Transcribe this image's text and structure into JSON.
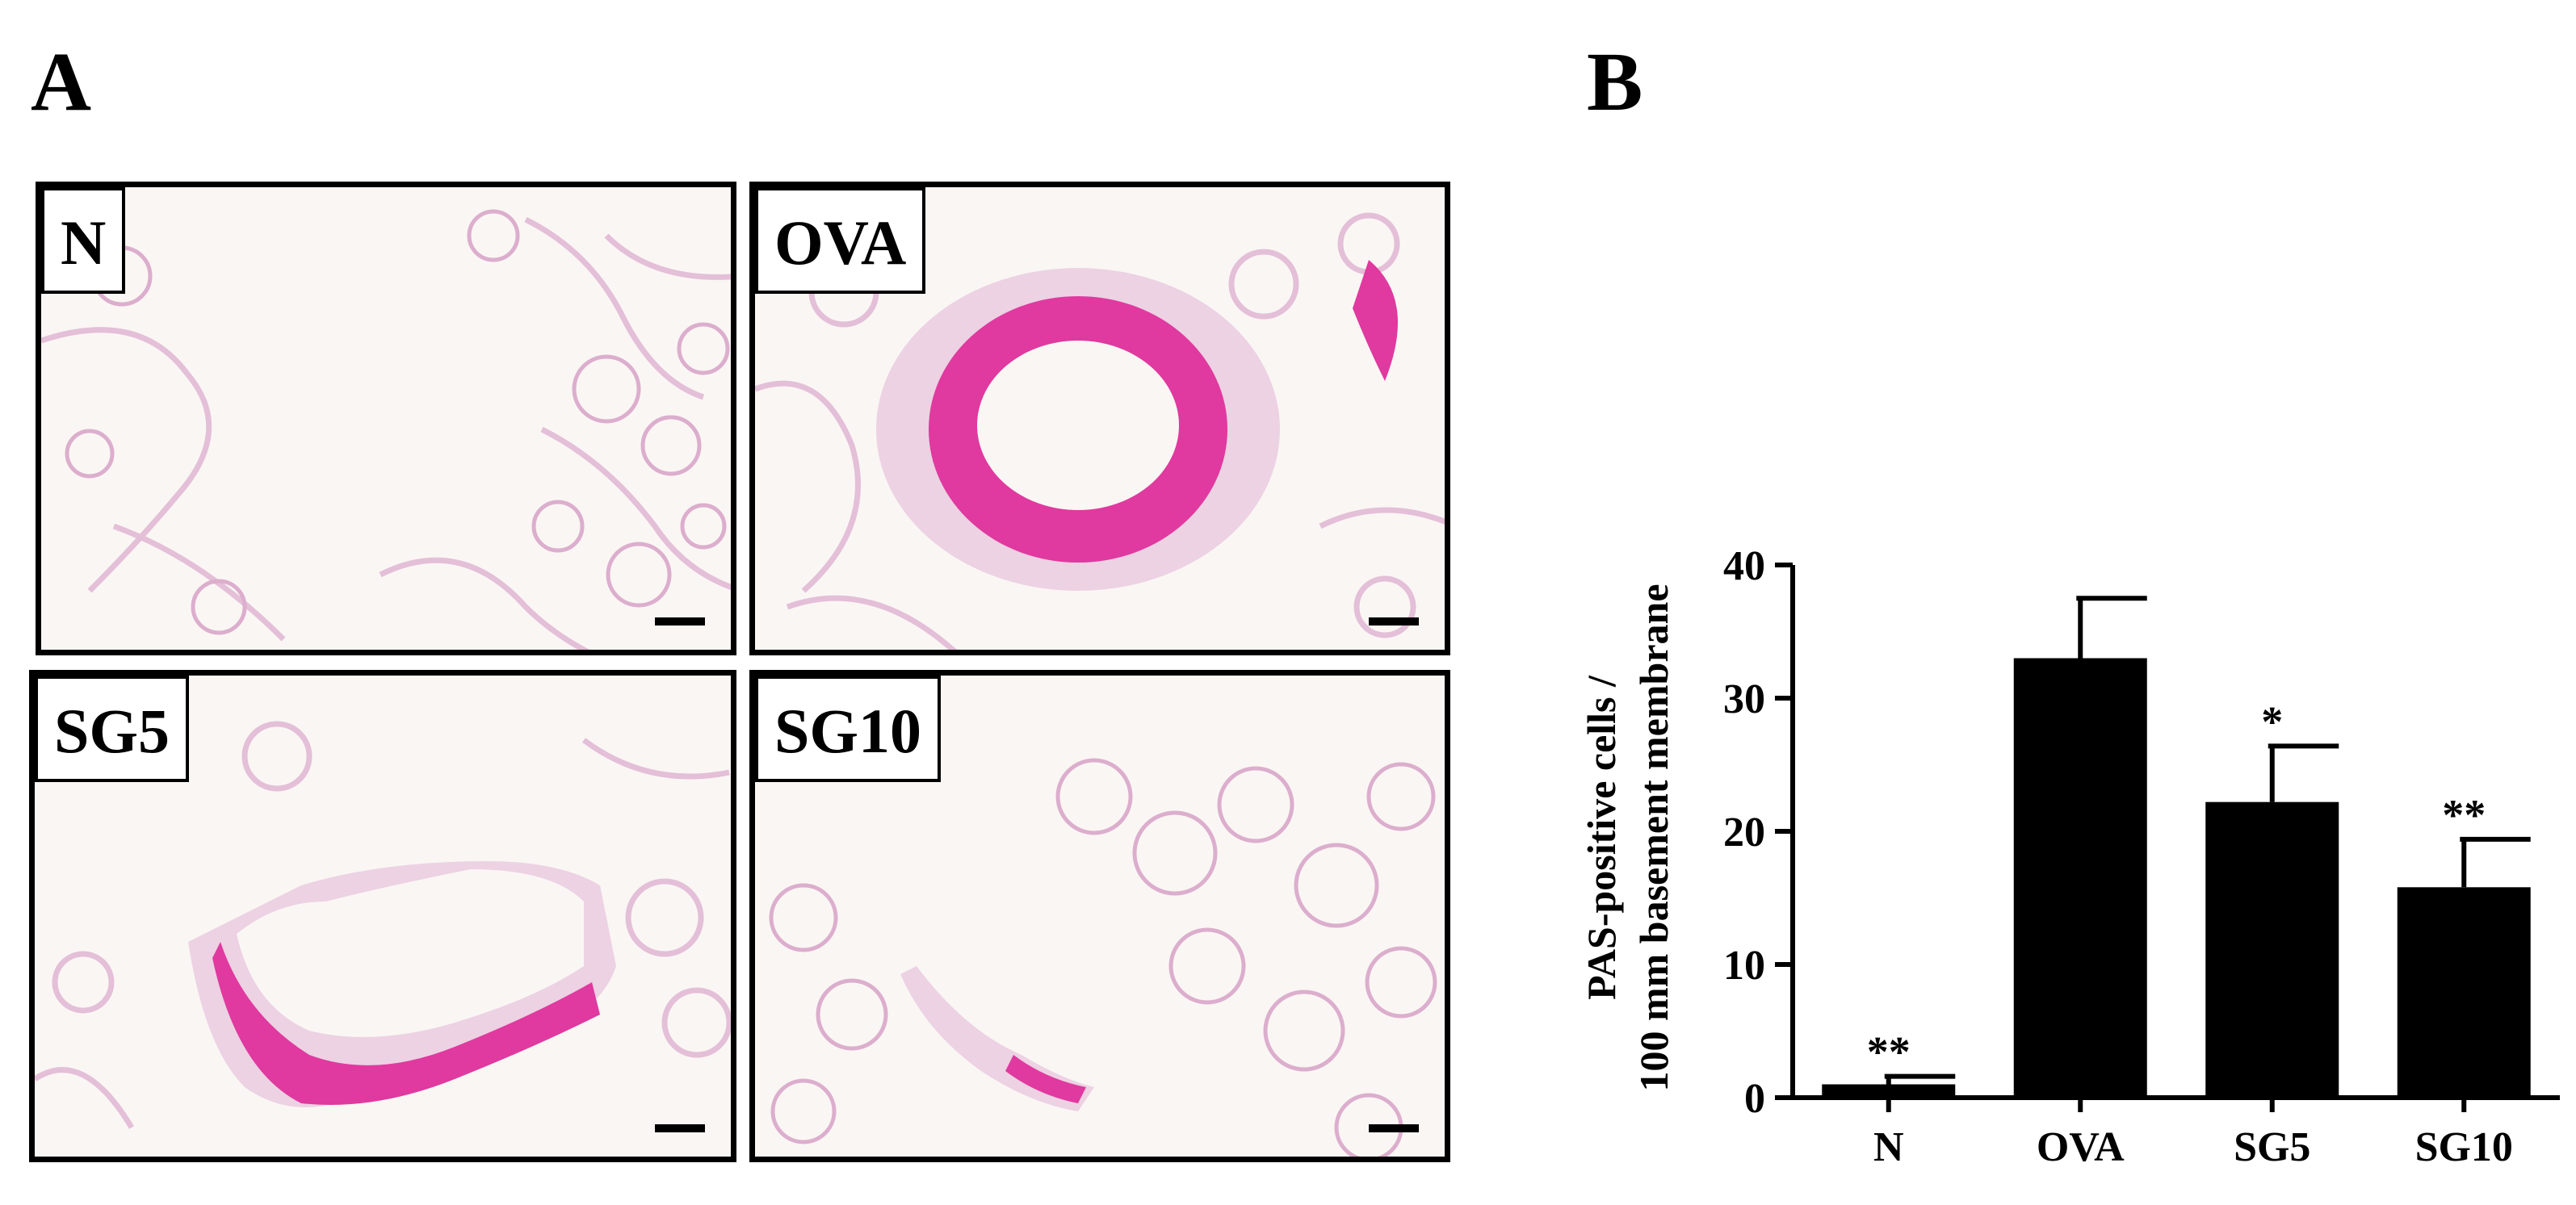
{
  "panels": {
    "a_label": "A",
    "b_label": "B"
  },
  "micrographs": [
    {
      "label": "N",
      "stain": "low"
    },
    {
      "label": "OVA",
      "stain": "high"
    },
    {
      "label": "SG5",
      "stain": "medium"
    },
    {
      "label": "SG10",
      "stain": "low-medium"
    }
  ],
  "colors": {
    "tissue": "#e9c6de",
    "mucus": "#e0399f",
    "background": "#faf6f4",
    "bars": "#000000"
  },
  "chart_data": {
    "type": "bar",
    "categories": [
      "N",
      "OVA",
      "SG5",
      "SG10"
    ],
    "values": [
      1,
      33,
      22.2,
      15.8
    ],
    "errors": [
      0.6,
      4.5,
      4.2,
      3.6
    ],
    "significance": [
      "**",
      "",
      "*",
      "**"
    ],
    "ylabel_line1": "PAS-positive cells /",
    "ylabel_line2": "100 mm basement membrane",
    "ylim": [
      0,
      40
    ],
    "yticks": [
      0,
      10,
      20,
      30,
      40
    ]
  }
}
